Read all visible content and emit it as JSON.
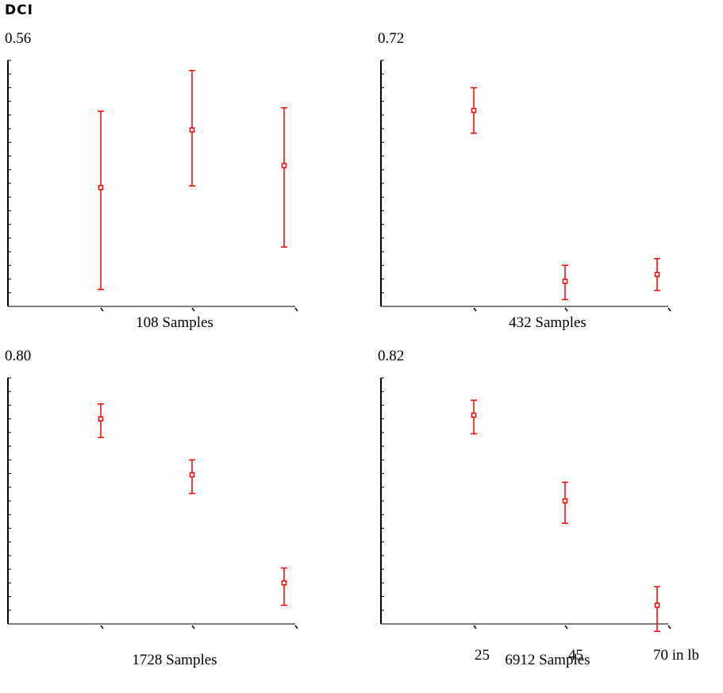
{
  "title": "DCI",
  "colors": {
    "errorbar": "#ff0000",
    "axis": "#000000"
  },
  "shared_x_labels": [
    "25",
    "45",
    "70 in lb"
  ],
  "chart_data": [
    {
      "type": "scatter",
      "top_value": "0.56",
      "caption": "108 Samples",
      "x": [
        25,
        45,
        70
      ],
      "y": [
        0.5,
        0.534,
        0.513
      ],
      "y_low": [
        0.44,
        0.501,
        0.465
      ],
      "y_high": [
        0.545,
        0.569,
        0.547
      ],
      "ylim": [
        0.43,
        0.575
      ],
      "xlim": [
        0,
        70
      ]
    },
    {
      "type": "scatter",
      "top_value": "0.72",
      "caption": "432 Samples",
      "x": [
        25,
        45,
        70
      ],
      "y": [
        0.7,
        0.625,
        0.628
      ],
      "y_low": [
        0.69,
        0.617,
        0.621
      ],
      "y_high": [
        0.71,
        0.632,
        0.635
      ],
      "ylim": [
        0.614,
        0.722
      ],
      "xlim": [
        0,
        70
      ]
    },
    {
      "type": "scatter",
      "top_value": "0.80",
      "caption": "1728 Samples",
      "x": [
        25,
        45,
        70
      ],
      "y": [
        0.79,
        0.76,
        0.702
      ],
      "y_low": [
        0.78,
        0.75,
        0.69
      ],
      "y_high": [
        0.798,
        0.768,
        0.71
      ],
      "ylim": [
        0.68,
        0.812
      ],
      "xlim": [
        0,
        70
      ]
    },
    {
      "type": "scatter",
      "top_value": "0.82",
      "caption": "6912 Samples",
      "x": [
        25,
        45,
        70
      ],
      "y": [
        0.808,
        0.785,
        0.757
      ],
      "y_low": [
        0.803,
        0.779,
        0.75
      ],
      "y_high": [
        0.812,
        0.79,
        0.762
      ],
      "ylim": [
        0.752,
        0.818
      ],
      "xlim": [
        0,
        70
      ]
    }
  ]
}
